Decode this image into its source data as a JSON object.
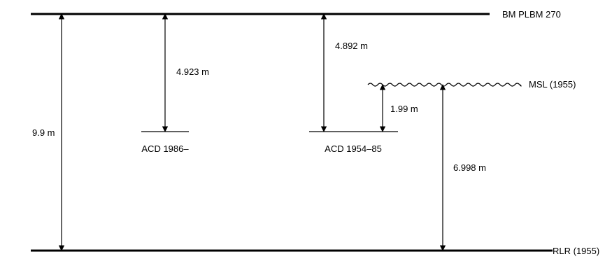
{
  "diagram": {
    "labels": {
      "bm": "BM PLBM 270",
      "msl": "MSL (1955)",
      "rlr": "RLR (1955)",
      "acd_new": "ACD 1986–",
      "acd_old": "ACD 1954–85"
    },
    "measurements": {
      "total": "9.9 m",
      "bm_to_acd_new": "4.923 m",
      "bm_to_acd_old": "4.892 m",
      "acd_old_to_msl": "1.99 m",
      "rlr_to_msl": "6.998 m"
    },
    "colors": {
      "line": "#000000",
      "background": "#ffffff"
    }
  }
}
